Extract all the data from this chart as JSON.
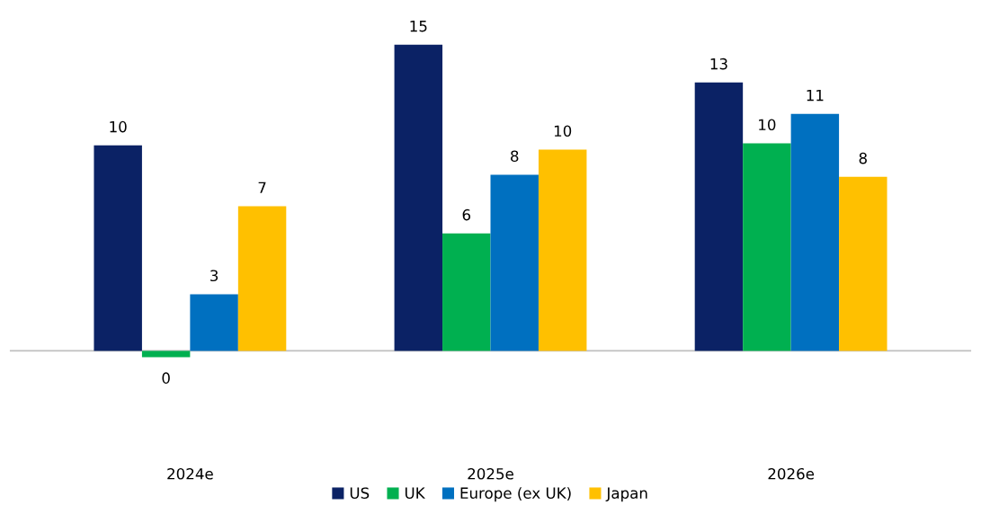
{
  "chart_data": {
    "type": "bar",
    "categories": [
      "2024e",
      "2025e",
      "2026e"
    ],
    "series": [
      {
        "name": "US",
        "color": "#0b2265",
        "values": [
          9.8,
          14.6,
          12.8
        ],
        "value_labels": [
          "10",
          "15",
          "13"
        ]
      },
      {
        "name": "UK",
        "color": "#00b050",
        "values": [
          -0.3,
          5.6,
          9.9
        ],
        "value_labels": [
          "0",
          "6",
          "10"
        ]
      },
      {
        "name": "Europe (ex UK)",
        "color": "#0070c0",
        "values": [
          2.7,
          8.4,
          11.3
        ],
        "value_labels": [
          "3",
          "8",
          "11"
        ]
      },
      {
        "name": "Japan",
        "color": "#ffc000",
        "values": [
          6.9,
          9.6,
          8.3
        ],
        "value_labels": [
          "7",
          "10",
          "8"
        ]
      }
    ],
    "tick_labels": "x",
    "grid": false,
    "legend": "bottom"
  }
}
